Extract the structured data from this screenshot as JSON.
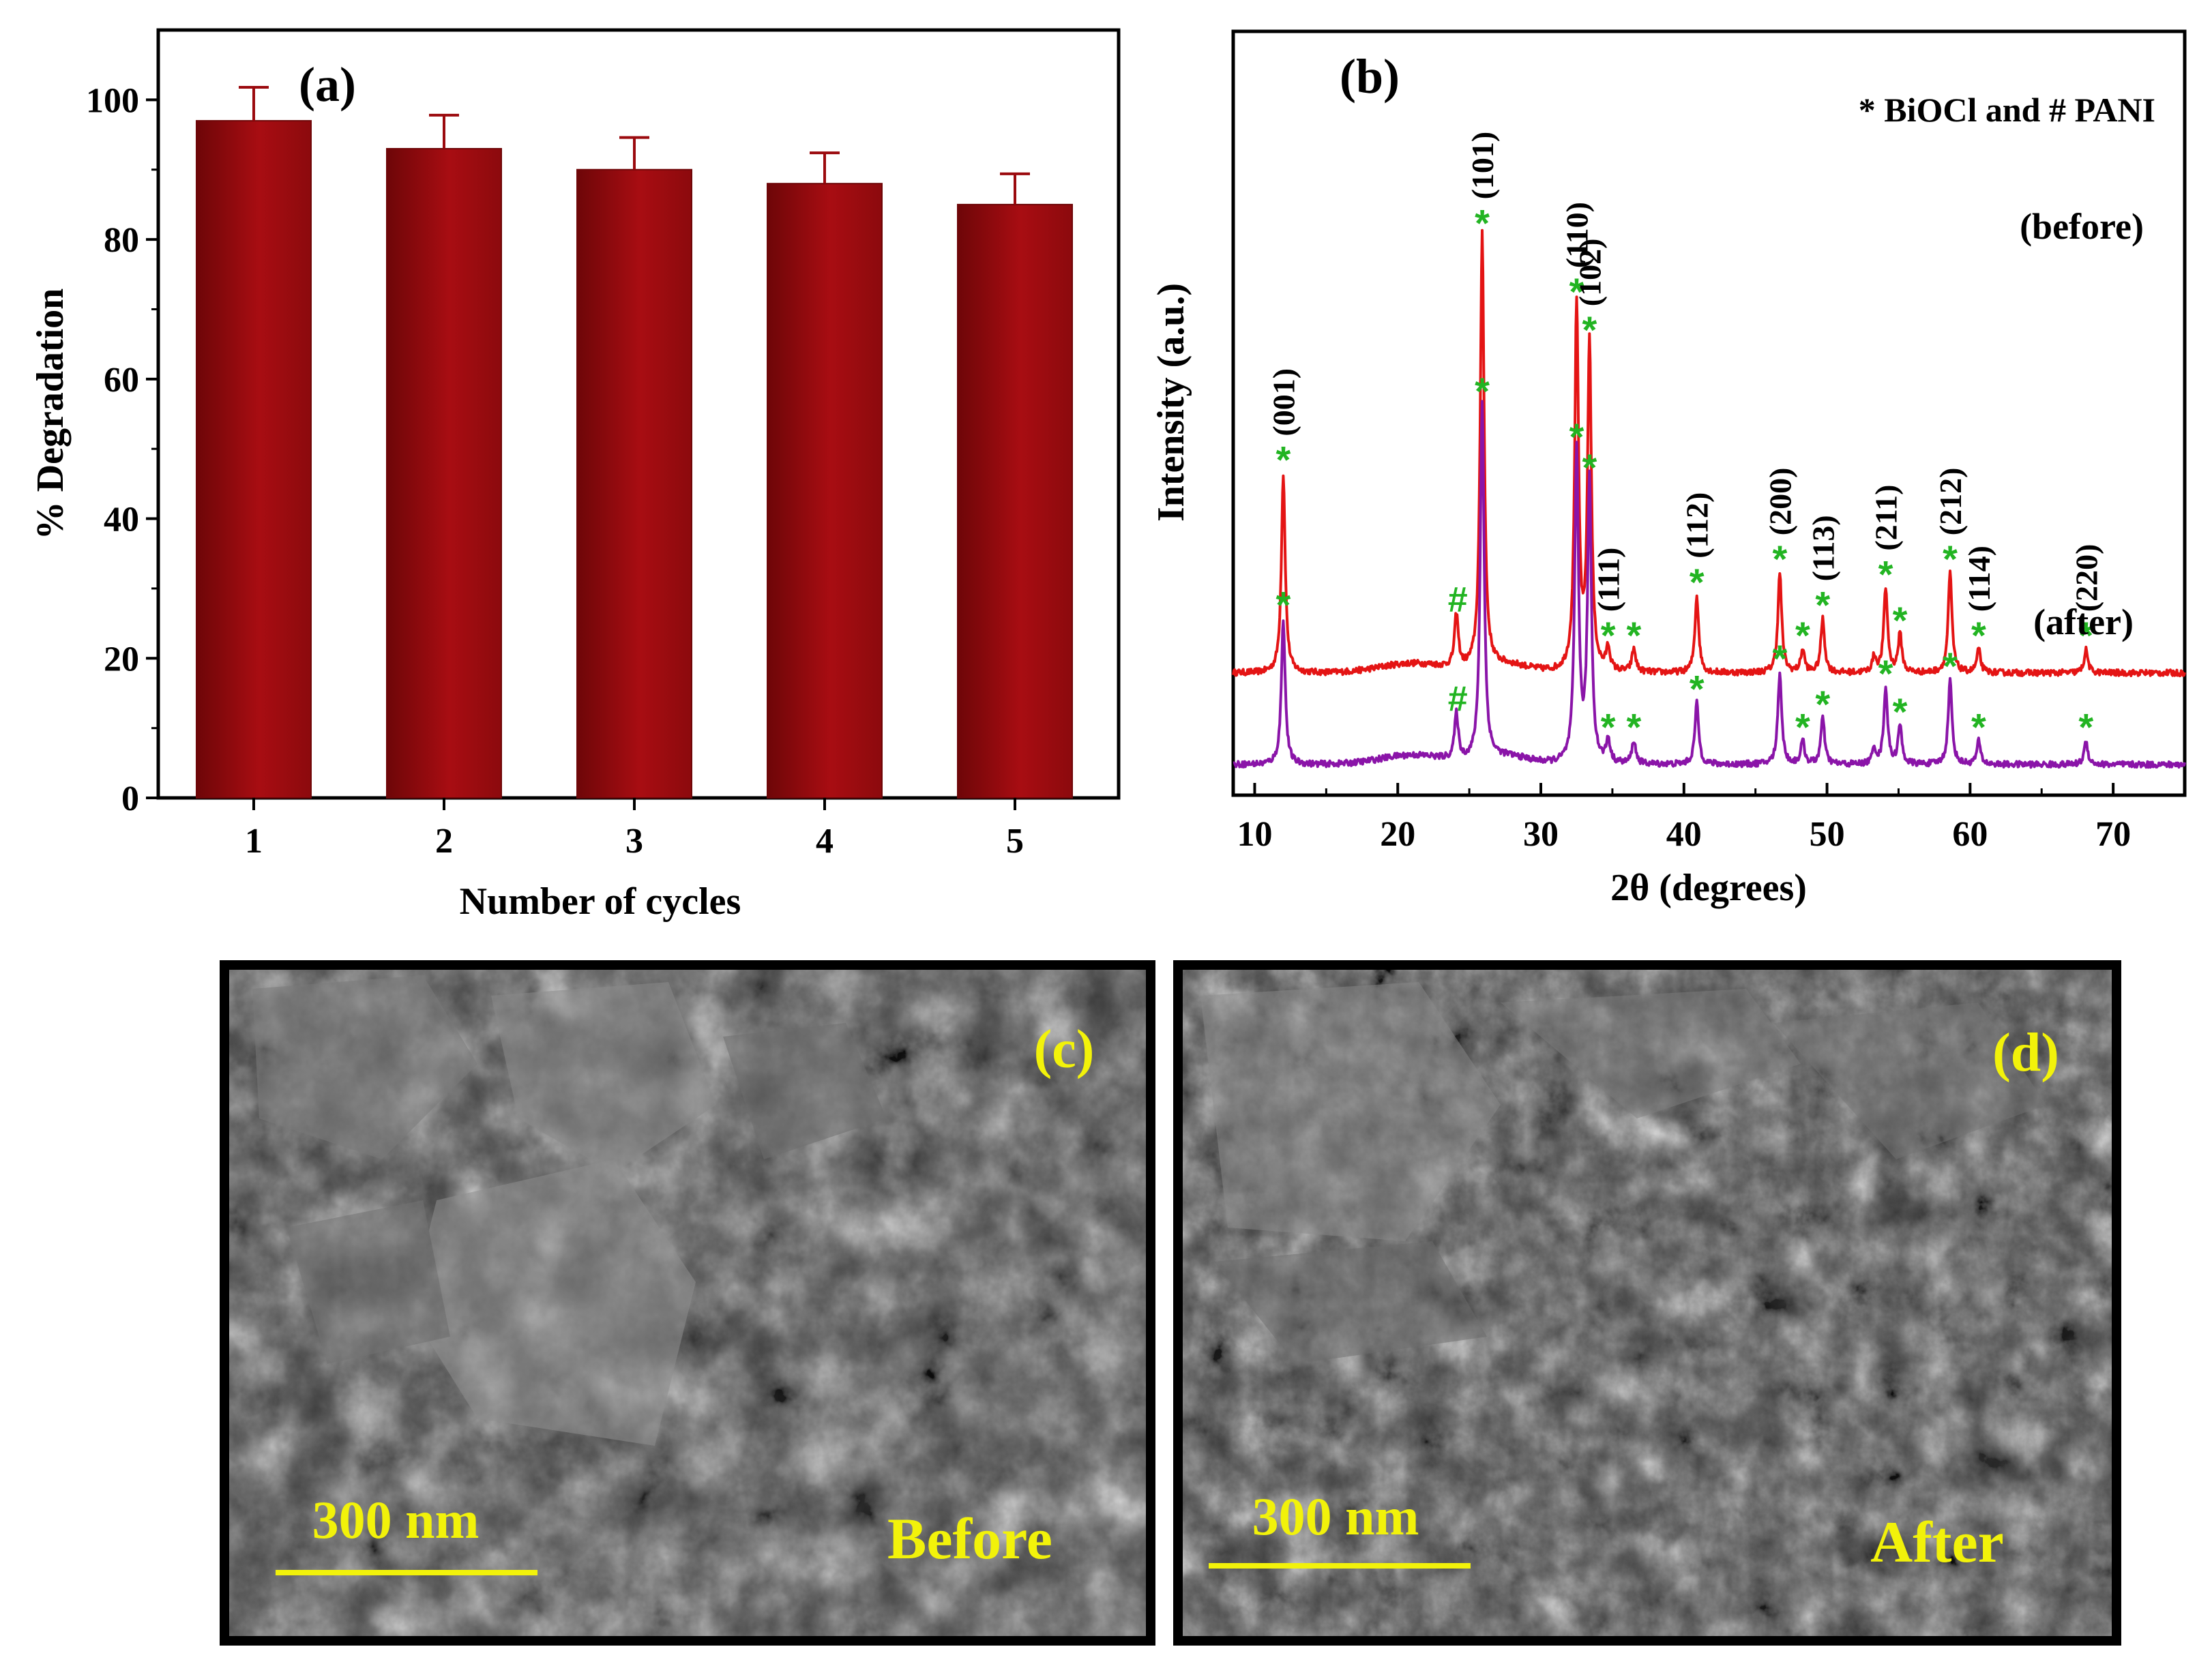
{
  "colors": {
    "bar": "#9b0a0e",
    "bar_dark": "#6e0608",
    "before_line": "#e41414",
    "after_line": "#8a14a8",
    "marker": "#22b422",
    "sem_text": "#f2f20a",
    "sem_bg": "#3c3c3c"
  },
  "chart_data": [
    {
      "panel": "(a)",
      "type": "bar",
      "categories": [
        "1",
        "2",
        "3",
        "4",
        "5"
      ],
      "values": [
        97,
        93,
        90,
        88,
        85
      ],
      "errors": [
        4.8,
        4.8,
        4.6,
        4.4,
        4.4
      ],
      "xlabel": "Number of cycles",
      "ylabel": "% Degradation",
      "ylim": [
        0,
        110
      ],
      "yticks": [
        0,
        20,
        40,
        60,
        80,
        100
      ]
    },
    {
      "panel": "(b)",
      "type": "line",
      "xlabel": "2θ (degrees)",
      "ylabel": "Intensity (a.u.)",
      "xlim": [
        8.5,
        75
      ],
      "xticks": [
        10,
        20,
        30,
        40,
        50,
        60,
        70
      ],
      "legend_note": "* BiOCl and # PANI",
      "series": [
        {
          "name": "(before)",
          "baseline": 0.16,
          "peaks": [
            {
              "x": 12.0,
              "h": 0.26,
              "marker": "*",
              "label": "(001)"
            },
            {
              "x": 24.1,
              "h": 0.07,
              "marker": "#",
              "label": ""
            },
            {
              "x": 25.9,
              "h": 0.57,
              "marker": "*",
              "label": "(101)"
            },
            {
              "x": 32.5,
              "h": 0.48,
              "marker": "*",
              "label": "(110)"
            },
            {
              "x": 33.4,
              "h": 0.43,
              "marker": "*",
              "label": "(102)"
            },
            {
              "x": 34.7,
              "h": 0.03,
              "marker": "*",
              "label": "(111)"
            },
            {
              "x": 36.5,
              "h": 0.03,
              "marker": "*",
              "label": ""
            },
            {
              "x": 40.9,
              "h": 0.1,
              "marker": "*",
              "label": "(112)"
            },
            {
              "x": 46.7,
              "h": 0.13,
              "marker": "*",
              "label": "(200)"
            },
            {
              "x": 48.3,
              "h": 0.03,
              "marker": "*",
              "label": ""
            },
            {
              "x": 49.7,
              "h": 0.07,
              "marker": "*",
              "label": "(113)"
            },
            {
              "x": 53.3,
              "h": 0.02,
              "marker": "",
              "label": ""
            },
            {
              "x": 54.1,
              "h": 0.11,
              "marker": "*",
              "label": "(211)"
            },
            {
              "x": 55.1,
              "h": 0.05,
              "marker": "*",
              "label": ""
            },
            {
              "x": 58.6,
              "h": 0.13,
              "marker": "*",
              "label": "(212)"
            },
            {
              "x": 60.6,
              "h": 0.03,
              "marker": "*",
              "label": "(114)"
            },
            {
              "x": 68.1,
              "h": 0.03,
              "marker": "*",
              "label": "(220)"
            }
          ]
        },
        {
          "name": "(after)",
          "baseline": 0.04,
          "peaks": [
            {
              "x": 12.0,
              "h": 0.19,
              "marker": "*",
              "label": ""
            },
            {
              "x": 24.1,
              "h": 0.06,
              "marker": "#",
              "label": ""
            },
            {
              "x": 25.9,
              "h": 0.47,
              "marker": "*",
              "label": ""
            },
            {
              "x": 32.5,
              "h": 0.41,
              "marker": "*",
              "label": ""
            },
            {
              "x": 33.4,
              "h": 0.37,
              "marker": "*",
              "label": ""
            },
            {
              "x": 34.7,
              "h": 0.03,
              "marker": "*",
              "label": ""
            },
            {
              "x": 36.5,
              "h": 0.03,
              "marker": "*",
              "label": ""
            },
            {
              "x": 40.9,
              "h": 0.08,
              "marker": "*",
              "label": ""
            },
            {
              "x": 46.7,
              "h": 0.12,
              "marker": "*",
              "label": ""
            },
            {
              "x": 48.3,
              "h": 0.03,
              "marker": "*",
              "label": ""
            },
            {
              "x": 49.7,
              "h": 0.06,
              "marker": "*",
              "label": ""
            },
            {
              "x": 53.3,
              "h": 0.02,
              "marker": "",
              "label": ""
            },
            {
              "x": 54.1,
              "h": 0.1,
              "marker": "*",
              "label": ""
            },
            {
              "x": 55.1,
              "h": 0.05,
              "marker": "*",
              "label": ""
            },
            {
              "x": 58.6,
              "h": 0.11,
              "marker": "*",
              "label": ""
            },
            {
              "x": 60.6,
              "h": 0.03,
              "marker": "*",
              "label": ""
            },
            {
              "x": 68.1,
              "h": 0.03,
              "marker": "*",
              "label": ""
            }
          ]
        }
      ]
    }
  ],
  "sem_panels": [
    {
      "panel": "(c)",
      "scale_bar": "300 nm",
      "caption": "Before"
    },
    {
      "panel": "(d)",
      "scale_bar": "300 nm",
      "caption": "After"
    }
  ]
}
